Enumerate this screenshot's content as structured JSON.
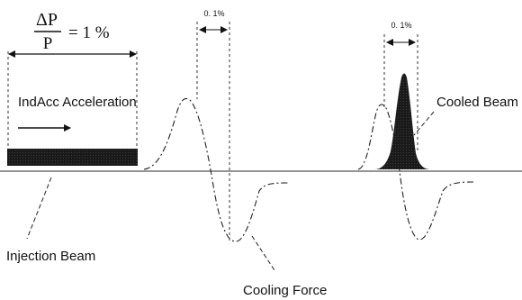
{
  "formula": {
    "numerator": "ΔP",
    "denominator": "P",
    "value": "= 1 %"
  },
  "labels": {
    "acceleration": "IndAcc Acceleration",
    "injection_beam": "Injection Beam",
    "cooling_force": "Cooling Force",
    "cooled_beam": "Cooled Beam",
    "spread_left": "0. 1%",
    "spread_right": "0. 1%"
  },
  "colors": {
    "ink": "#111111",
    "beam_fill": "#1a1a1a",
    "baseline": "#555555"
  }
}
